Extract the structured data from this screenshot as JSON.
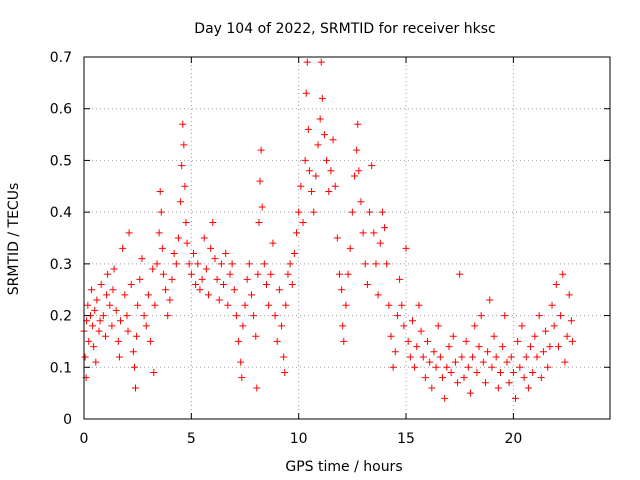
{
  "chart_data": {
    "type": "scatter",
    "title": "Day 104 of 2022, SRMTID for receiver hksc",
    "xlabel": "GPS time / hours",
    "ylabel": "SRMTID / TECUs",
    "xlim": [
      0,
      24.5
    ],
    "ylim": [
      0,
      0.7
    ],
    "xticks": [
      0,
      5,
      10,
      15,
      20
    ],
    "xtick_labels": [
      "0",
      "5",
      "10",
      "15",
      "20"
    ],
    "yticks": [
      0,
      0.1,
      0.2,
      0.3,
      0.4,
      0.5,
      0.6,
      0.7
    ],
    "ytick_labels": [
      "0",
      "0.1",
      "0.2",
      "0.3",
      "0.4",
      "0.5",
      "0.6",
      "0.7"
    ],
    "grid": true,
    "marker": "+",
    "color": "#ff0000",
    "series": [
      {
        "name": "SRMTID",
        "points": [
          [
            0.0,
            0.17
          ],
          [
            0.05,
            0.12
          ],
          [
            0.1,
            0.08
          ],
          [
            0.12,
            0.19
          ],
          [
            0.18,
            0.22
          ],
          [
            0.22,
            0.15
          ],
          [
            0.3,
            0.2
          ],
          [
            0.35,
            0.25
          ],
          [
            0.4,
            0.18
          ],
          [
            0.45,
            0.14
          ],
          [
            0.5,
            0.21
          ],
          [
            0.55,
            0.11
          ],
          [
            0.6,
            0.23
          ],
          [
            0.7,
            0.17
          ],
          [
            0.75,
            0.19
          ],
          [
            0.8,
            0.26
          ],
          [
            0.9,
            0.2
          ],
          [
            1.0,
            0.16
          ],
          [
            1.05,
            0.24
          ],
          [
            1.1,
            0.28
          ],
          [
            1.2,
            0.22
          ],
          [
            1.3,
            0.18
          ],
          [
            1.35,
            0.25
          ],
          [
            1.4,
            0.29
          ],
          [
            1.5,
            0.21
          ],
          [
            1.6,
            0.15
          ],
          [
            1.65,
            0.12
          ],
          [
            1.7,
            0.19
          ],
          [
            1.8,
            0.33
          ],
          [
            1.9,
            0.24
          ],
          [
            2.0,
            0.2
          ],
          [
            2.05,
            0.17
          ],
          [
            2.1,
            0.36
          ],
          [
            2.2,
            0.26
          ],
          [
            2.3,
            0.13
          ],
          [
            2.35,
            0.1
          ],
          [
            2.4,
            0.06
          ],
          [
            2.45,
            0.16
          ],
          [
            2.5,
            0.22
          ],
          [
            2.6,
            0.27
          ],
          [
            2.7,
            0.31
          ],
          [
            2.8,
            0.2
          ],
          [
            2.9,
            0.18
          ],
          [
            3.0,
            0.24
          ],
          [
            3.1,
            0.15
          ],
          [
            3.2,
            0.29
          ],
          [
            3.25,
            0.09
          ],
          [
            3.3,
            0.22
          ],
          [
            3.4,
            0.3
          ],
          [
            3.5,
            0.36
          ],
          [
            3.55,
            0.44
          ],
          [
            3.6,
            0.4
          ],
          [
            3.65,
            0.33
          ],
          [
            3.7,
            0.28
          ],
          [
            3.8,
            0.25
          ],
          [
            3.9,
            0.2
          ],
          [
            4.0,
            0.23
          ],
          [
            4.1,
            0.27
          ],
          [
            4.2,
            0.32
          ],
          [
            4.3,
            0.3
          ],
          [
            4.4,
            0.35
          ],
          [
            4.5,
            0.42
          ],
          [
            4.55,
            0.49
          ],
          [
            4.6,
            0.57
          ],
          [
            4.65,
            0.53
          ],
          [
            4.7,
            0.45
          ],
          [
            4.75,
            0.38
          ],
          [
            4.8,
            0.34
          ],
          [
            4.9,
            0.3
          ],
          [
            5.0,
            0.28
          ],
          [
            5.1,
            0.32
          ],
          [
            5.2,
            0.26
          ],
          [
            5.3,
            0.3
          ],
          [
            5.4,
            0.25
          ],
          [
            5.5,
            0.27
          ],
          [
            5.6,
            0.35
          ],
          [
            5.7,
            0.29
          ],
          [
            5.8,
            0.24
          ],
          [
            5.9,
            0.33
          ],
          [
            6.0,
            0.38
          ],
          [
            6.1,
            0.31
          ],
          [
            6.2,
            0.27
          ],
          [
            6.3,
            0.23
          ],
          [
            6.4,
            0.3
          ],
          [
            6.5,
            0.26
          ],
          [
            6.6,
            0.32
          ],
          [
            6.7,
            0.22
          ],
          [
            6.8,
            0.28
          ],
          [
            6.9,
            0.3
          ],
          [
            7.0,
            0.25
          ],
          [
            7.1,
            0.2
          ],
          [
            7.2,
            0.15
          ],
          [
            7.3,
            0.11
          ],
          [
            7.35,
            0.08
          ],
          [
            7.4,
            0.18
          ],
          [
            7.5,
            0.22
          ],
          [
            7.6,
            0.27
          ],
          [
            7.7,
            0.3
          ],
          [
            7.8,
            0.24
          ],
          [
            7.9,
            0.2
          ],
          [
            8.0,
            0.16
          ],
          [
            8.05,
            0.06
          ],
          [
            8.1,
            0.28
          ],
          [
            8.15,
            0.38
          ],
          [
            8.2,
            0.46
          ],
          [
            8.25,
            0.52
          ],
          [
            8.3,
            0.41
          ],
          [
            8.4,
            0.3
          ],
          [
            8.5,
            0.26
          ],
          [
            8.6,
            0.22
          ],
          [
            8.7,
            0.28
          ],
          [
            8.8,
            0.34
          ],
          [
            8.9,
            0.2
          ],
          [
            9.0,
            0.15
          ],
          [
            9.1,
            0.25
          ],
          [
            9.2,
            0.18
          ],
          [
            9.3,
            0.12
          ],
          [
            9.35,
            0.09
          ],
          [
            9.4,
            0.22
          ],
          [
            9.5,
            0.28
          ],
          [
            9.6,
            0.3
          ],
          [
            9.7,
            0.26
          ],
          [
            9.8,
            0.32
          ],
          [
            9.9,
            0.36
          ],
          [
            10.0,
            0.4
          ],
          [
            10.1,
            0.45
          ],
          [
            10.2,
            0.38
          ],
          [
            10.3,
            0.5
          ],
          [
            10.35,
            0.63
          ],
          [
            10.4,
            0.69
          ],
          [
            10.45,
            0.56
          ],
          [
            10.5,
            0.48
          ],
          [
            10.6,
            0.44
          ],
          [
            10.7,
            0.4
          ],
          [
            10.8,
            0.47
          ],
          [
            10.9,
            0.53
          ],
          [
            11.0,
            0.58
          ],
          [
            11.05,
            0.69
          ],
          [
            11.1,
            0.62
          ],
          [
            11.2,
            0.55
          ],
          [
            11.3,
            0.5
          ],
          [
            11.4,
            0.44
          ],
          [
            11.5,
            0.48
          ],
          [
            11.6,
            0.54
          ],
          [
            11.7,
            0.45
          ],
          [
            11.8,
            0.35
          ],
          [
            11.9,
            0.28
          ],
          [
            12.0,
            0.25
          ],
          [
            12.05,
            0.18
          ],
          [
            12.1,
            0.15
          ],
          [
            12.2,
            0.22
          ],
          [
            12.3,
            0.28
          ],
          [
            12.4,
            0.33
          ],
          [
            12.5,
            0.4
          ],
          [
            12.6,
            0.47
          ],
          [
            12.7,
            0.52
          ],
          [
            12.75,
            0.57
          ],
          [
            12.8,
            0.48
          ],
          [
            12.9,
            0.42
          ],
          [
            13.0,
            0.36
          ],
          [
            13.1,
            0.3
          ],
          [
            13.2,
            0.26
          ],
          [
            13.3,
            0.4
          ],
          [
            13.4,
            0.49
          ],
          [
            13.5,
            0.36
          ],
          [
            13.6,
            0.3
          ],
          [
            13.7,
            0.24
          ],
          [
            13.8,
            0.34
          ],
          [
            13.9,
            0.4
          ],
          [
            14.0,
            0.37
          ],
          [
            14.1,
            0.3
          ],
          [
            14.2,
            0.22
          ],
          [
            14.3,
            0.16
          ],
          [
            14.4,
            0.1
          ],
          [
            14.5,
            0.13
          ],
          [
            14.6,
            0.2
          ],
          [
            14.7,
            0.27
          ],
          [
            14.8,
            0.22
          ],
          [
            14.9,
            0.18
          ],
          [
            15.0,
            0.33
          ],
          [
            15.1,
            0.15
          ],
          [
            15.2,
            0.12
          ],
          [
            15.3,
            0.19
          ],
          [
            15.4,
            0.1
          ],
          [
            15.5,
            0.14
          ],
          [
            15.6,
            0.22
          ],
          [
            15.7,
            0.17
          ],
          [
            15.8,
            0.12
          ],
          [
            15.9,
            0.08
          ],
          [
            16.0,
            0.15
          ],
          [
            16.1,
            0.11
          ],
          [
            16.2,
            0.06
          ],
          [
            16.3,
            0.13
          ],
          [
            16.4,
            0.1
          ],
          [
            16.5,
            0.18
          ],
          [
            16.6,
            0.12
          ],
          [
            16.7,
            0.08
          ],
          [
            16.8,
            0.04
          ],
          [
            16.9,
            0.1
          ],
          [
            17.0,
            0.14
          ],
          [
            17.1,
            0.09
          ],
          [
            17.2,
            0.16
          ],
          [
            17.3,
            0.11
          ],
          [
            17.4,
            0.07
          ],
          [
            17.5,
            0.28
          ],
          [
            17.6,
            0.12
          ],
          [
            17.7,
            0.08
          ],
          [
            17.8,
            0.15
          ],
          [
            17.9,
            0.1
          ],
          [
            18.0,
            0.05
          ],
          [
            18.1,
            0.12
          ],
          [
            18.2,
            0.18
          ],
          [
            18.3,
            0.09
          ],
          [
            18.4,
            0.14
          ],
          [
            18.5,
            0.2
          ],
          [
            18.6,
            0.11
          ],
          [
            18.7,
            0.07
          ],
          [
            18.8,
            0.13
          ],
          [
            18.9,
            0.23
          ],
          [
            19.0,
            0.1
          ],
          [
            19.1,
            0.16
          ],
          [
            19.2,
            0.12
          ],
          [
            19.3,
            0.06
          ],
          [
            19.4,
            0.09
          ],
          [
            19.5,
            0.14
          ],
          [
            19.6,
            0.2
          ],
          [
            19.7,
            0.11
          ],
          [
            19.8,
            0.07
          ],
          [
            19.9,
            0.12
          ],
          [
            20.0,
            0.09
          ],
          [
            20.1,
            0.04
          ],
          [
            20.2,
            0.15
          ],
          [
            20.3,
            0.1
          ],
          [
            20.4,
            0.18
          ],
          [
            20.5,
            0.08
          ],
          [
            20.6,
            0.12
          ],
          [
            20.7,
            0.06
          ],
          [
            20.8,
            0.14
          ],
          [
            20.9,
            0.09
          ],
          [
            21.0,
            0.16
          ],
          [
            21.1,
            0.12
          ],
          [
            21.2,
            0.2
          ],
          [
            21.3,
            0.08
          ],
          [
            21.4,
            0.13
          ],
          [
            21.5,
            0.17
          ],
          [
            21.6,
            0.1
          ],
          [
            21.7,
            0.14
          ],
          [
            21.8,
            0.22
          ],
          [
            21.9,
            0.18
          ],
          [
            22.0,
            0.26
          ],
          [
            22.1,
            0.14
          ],
          [
            22.2,
            0.2
          ],
          [
            22.3,
            0.28
          ],
          [
            22.4,
            0.11
          ],
          [
            22.5,
            0.16
          ],
          [
            22.6,
            0.24
          ],
          [
            22.7,
            0.19
          ],
          [
            22.75,
            0.15
          ]
        ]
      }
    ]
  }
}
